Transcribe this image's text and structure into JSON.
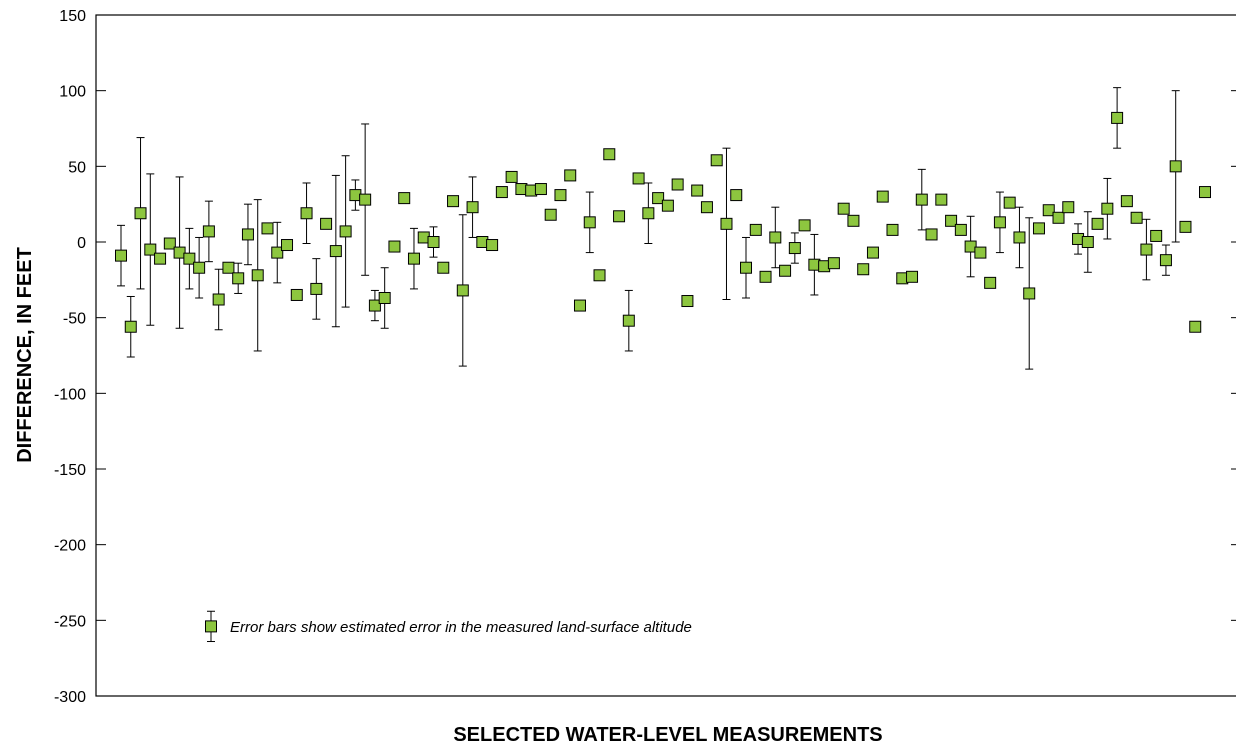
{
  "chart_data": {
    "type": "scatter",
    "title": "",
    "xlabel": "SELECTED WATER-LEVEL MEASUREMENTS",
    "ylabel": "DIFFERENCE, IN FEET",
    "ylim": [
      -300,
      150
    ],
    "yticks": [
      150,
      100,
      50,
      0,
      -50,
      -100,
      -150,
      -200,
      -250,
      -300
    ],
    "ytick_labels": [
      "150",
      "100",
      "50",
      "0",
      "-50",
      "-100",
      "-150",
      "-200",
      "-250",
      "-300"
    ],
    "xticks": "none",
    "grid": false,
    "legend": {
      "placement": "bottom-left",
      "label": "Error bars show estimated error in the measured land-surface altitude",
      "marker_color": "#8dc63f"
    },
    "marker_color": "#8dc63f",
    "marker_edge": "#000000",
    "error_bar_color": "#000000",
    "points": [
      {
        "x": 1,
        "y": -9,
        "err": 20
      },
      {
        "x": 2,
        "y": -56,
        "err": 20
      },
      {
        "x": 3,
        "y": 19,
        "err": 50
      },
      {
        "x": 4,
        "y": -5,
        "err": 50
      },
      {
        "x": 5,
        "y": -11,
        "err": 3
      },
      {
        "x": 6,
        "y": -1,
        "err": 3
      },
      {
        "x": 7,
        "y": -7,
        "err": 50
      },
      {
        "x": 8,
        "y": -11,
        "err": 20
      },
      {
        "x": 9,
        "y": -17,
        "err": 20
      },
      {
        "x": 10,
        "y": 7,
        "err": 20
      },
      {
        "x": 11,
        "y": -38,
        "err": 20
      },
      {
        "x": 12,
        "y": -17,
        "err": 3
      },
      {
        "x": 13,
        "y": -24,
        "err": 10
      },
      {
        "x": 14,
        "y": 5,
        "err": 20
      },
      {
        "x": 15,
        "y": -22,
        "err": 50
      },
      {
        "x": 16,
        "y": 9,
        "err": 3
      },
      {
        "x": 17,
        "y": -7,
        "err": 20
      },
      {
        "x": 18,
        "y": -2,
        "err": 3
      },
      {
        "x": 19,
        "y": -35,
        "err": 3
      },
      {
        "x": 20,
        "y": 19,
        "err": 20
      },
      {
        "x": 21,
        "y": -31,
        "err": 20
      },
      {
        "x": 22,
        "y": 12,
        "err": 3
      },
      {
        "x": 23,
        "y": -6,
        "err": 50
      },
      {
        "x": 24,
        "y": 7,
        "err": 50
      },
      {
        "x": 25,
        "y": 31,
        "err": 10
      },
      {
        "x": 26,
        "y": 28,
        "err": 50
      },
      {
        "x": 27,
        "y": -42,
        "err": 10
      },
      {
        "x": 28,
        "y": -37,
        "err": 20
      },
      {
        "x": 29,
        "y": -3,
        "err": 3
      },
      {
        "x": 30,
        "y": 29,
        "err": 3
      },
      {
        "x": 31,
        "y": -11,
        "err": 20
      },
      {
        "x": 32,
        "y": 3,
        "err": 0
      },
      {
        "x": 33,
        "y": 0,
        "err": 10
      },
      {
        "x": 34,
        "y": -17,
        "err": 3
      },
      {
        "x": 35,
        "y": 27,
        "err": 3
      },
      {
        "x": 36,
        "y": -32,
        "err": 50
      },
      {
        "x": 37,
        "y": 23,
        "err": 20
      },
      {
        "x": 38,
        "y": 0,
        "err": 3
      },
      {
        "x": 39,
        "y": -2,
        "err": 3
      },
      {
        "x": 40,
        "y": 33,
        "err": 0
      },
      {
        "x": 41,
        "y": 43,
        "err": 3
      },
      {
        "x": 42,
        "y": 35,
        "err": 3
      },
      {
        "x": 43,
        "y": 34,
        "err": 3
      },
      {
        "x": 44,
        "y": 35,
        "err": 3
      },
      {
        "x": 45,
        "y": 18,
        "err": 3
      },
      {
        "x": 46,
        "y": 31,
        "err": 3
      },
      {
        "x": 47,
        "y": 44,
        "err": 3
      },
      {
        "x": 48,
        "y": -42,
        "err": 3
      },
      {
        "x": 49,
        "y": 13,
        "err": 20
      },
      {
        "x": 50,
        "y": -22,
        "err": 3
      },
      {
        "x": 51,
        "y": 58,
        "err": 3
      },
      {
        "x": 52,
        "y": 17,
        "err": 3
      },
      {
        "x": 53,
        "y": -52,
        "err": 20
      },
      {
        "x": 54,
        "y": 42,
        "err": 3
      },
      {
        "x": 55,
        "y": 19,
        "err": 20
      },
      {
        "x": 56,
        "y": 29,
        "err": 3
      },
      {
        "x": 57,
        "y": 24,
        "err": 0
      },
      {
        "x": 58,
        "y": 38,
        "err": 3
      },
      {
        "x": 59,
        "y": -39,
        "err": 0
      },
      {
        "x": 60,
        "y": 34,
        "err": 3
      },
      {
        "x": 61,
        "y": 23,
        "err": 3
      },
      {
        "x": 62,
        "y": 54,
        "err": 3
      },
      {
        "x": 63,
        "y": 12,
        "err": 50
      },
      {
        "x": 64,
        "y": 31,
        "err": 3
      },
      {
        "x": 65,
        "y": -17,
        "err": 20
      },
      {
        "x": 66,
        "y": 8,
        "err": 3
      },
      {
        "x": 67,
        "y": -23,
        "err": 3
      },
      {
        "x": 68,
        "y": 3,
        "err": 20
      },
      {
        "x": 69,
        "y": -19,
        "err": 3
      },
      {
        "x": 70,
        "y": -4,
        "err": 10
      },
      {
        "x": 71,
        "y": 11,
        "err": 3
      },
      {
        "x": 72,
        "y": -15,
        "err": 20
      },
      {
        "x": 73,
        "y": -16,
        "err": 3
      },
      {
        "x": 74,
        "y": -14,
        "err": 3
      },
      {
        "x": 75,
        "y": 22,
        "err": 3
      },
      {
        "x": 76,
        "y": 14,
        "err": 3
      },
      {
        "x": 77,
        "y": -18,
        "err": 3
      },
      {
        "x": 78,
        "y": -7,
        "err": 3
      },
      {
        "x": 79,
        "y": 30,
        "err": 3
      },
      {
        "x": 80,
        "y": 8,
        "err": 3
      },
      {
        "x": 81,
        "y": -24,
        "err": 3
      },
      {
        "x": 82,
        "y": -23,
        "err": 3
      },
      {
        "x": 83,
        "y": 28,
        "err": 20
      },
      {
        "x": 84,
        "y": 5,
        "err": 0
      },
      {
        "x": 85,
        "y": 28,
        "err": 3
      },
      {
        "x": 86,
        "y": 14,
        "err": 3
      },
      {
        "x": 87,
        "y": 8,
        "err": 3
      },
      {
        "x": 88,
        "y": -3,
        "err": 20
      },
      {
        "x": 89,
        "y": -7,
        "err": 3
      },
      {
        "x": 90,
        "y": -27,
        "err": 3
      },
      {
        "x": 91,
        "y": 13,
        "err": 20
      },
      {
        "x": 92,
        "y": 26,
        "err": 3
      },
      {
        "x": 93,
        "y": 3,
        "err": 20
      },
      {
        "x": 94,
        "y": -34,
        "err": 50
      },
      {
        "x": 95,
        "y": 9,
        "err": 3
      },
      {
        "x": 96,
        "y": 21,
        "err": 3
      },
      {
        "x": 97,
        "y": 16,
        "err": 3
      },
      {
        "x": 98,
        "y": 23,
        "err": 3
      },
      {
        "x": 99,
        "y": 2,
        "err": 10
      },
      {
        "x": 100,
        "y": 0,
        "err": 20
      },
      {
        "x": 101,
        "y": 12,
        "err": 3
      },
      {
        "x": 102,
        "y": 22,
        "err": 20
      },
      {
        "x": 103,
        "y": 82,
        "err": 20
      },
      {
        "x": 104,
        "y": 27,
        "err": 3
      },
      {
        "x": 105,
        "y": 16,
        "err": 3
      },
      {
        "x": 106,
        "y": -5,
        "err": 20
      },
      {
        "x": 107,
        "y": 4,
        "err": 3
      },
      {
        "x": 108,
        "y": -12,
        "err": 10
      },
      {
        "x": 109,
        "y": 50,
        "err": 50
      },
      {
        "x": 110,
        "y": 10,
        "err": 3
      },
      {
        "x": 111,
        "y": -56,
        "err": 3
      },
      {
        "x": 112,
        "y": 33,
        "err": 3
      }
    ]
  }
}
